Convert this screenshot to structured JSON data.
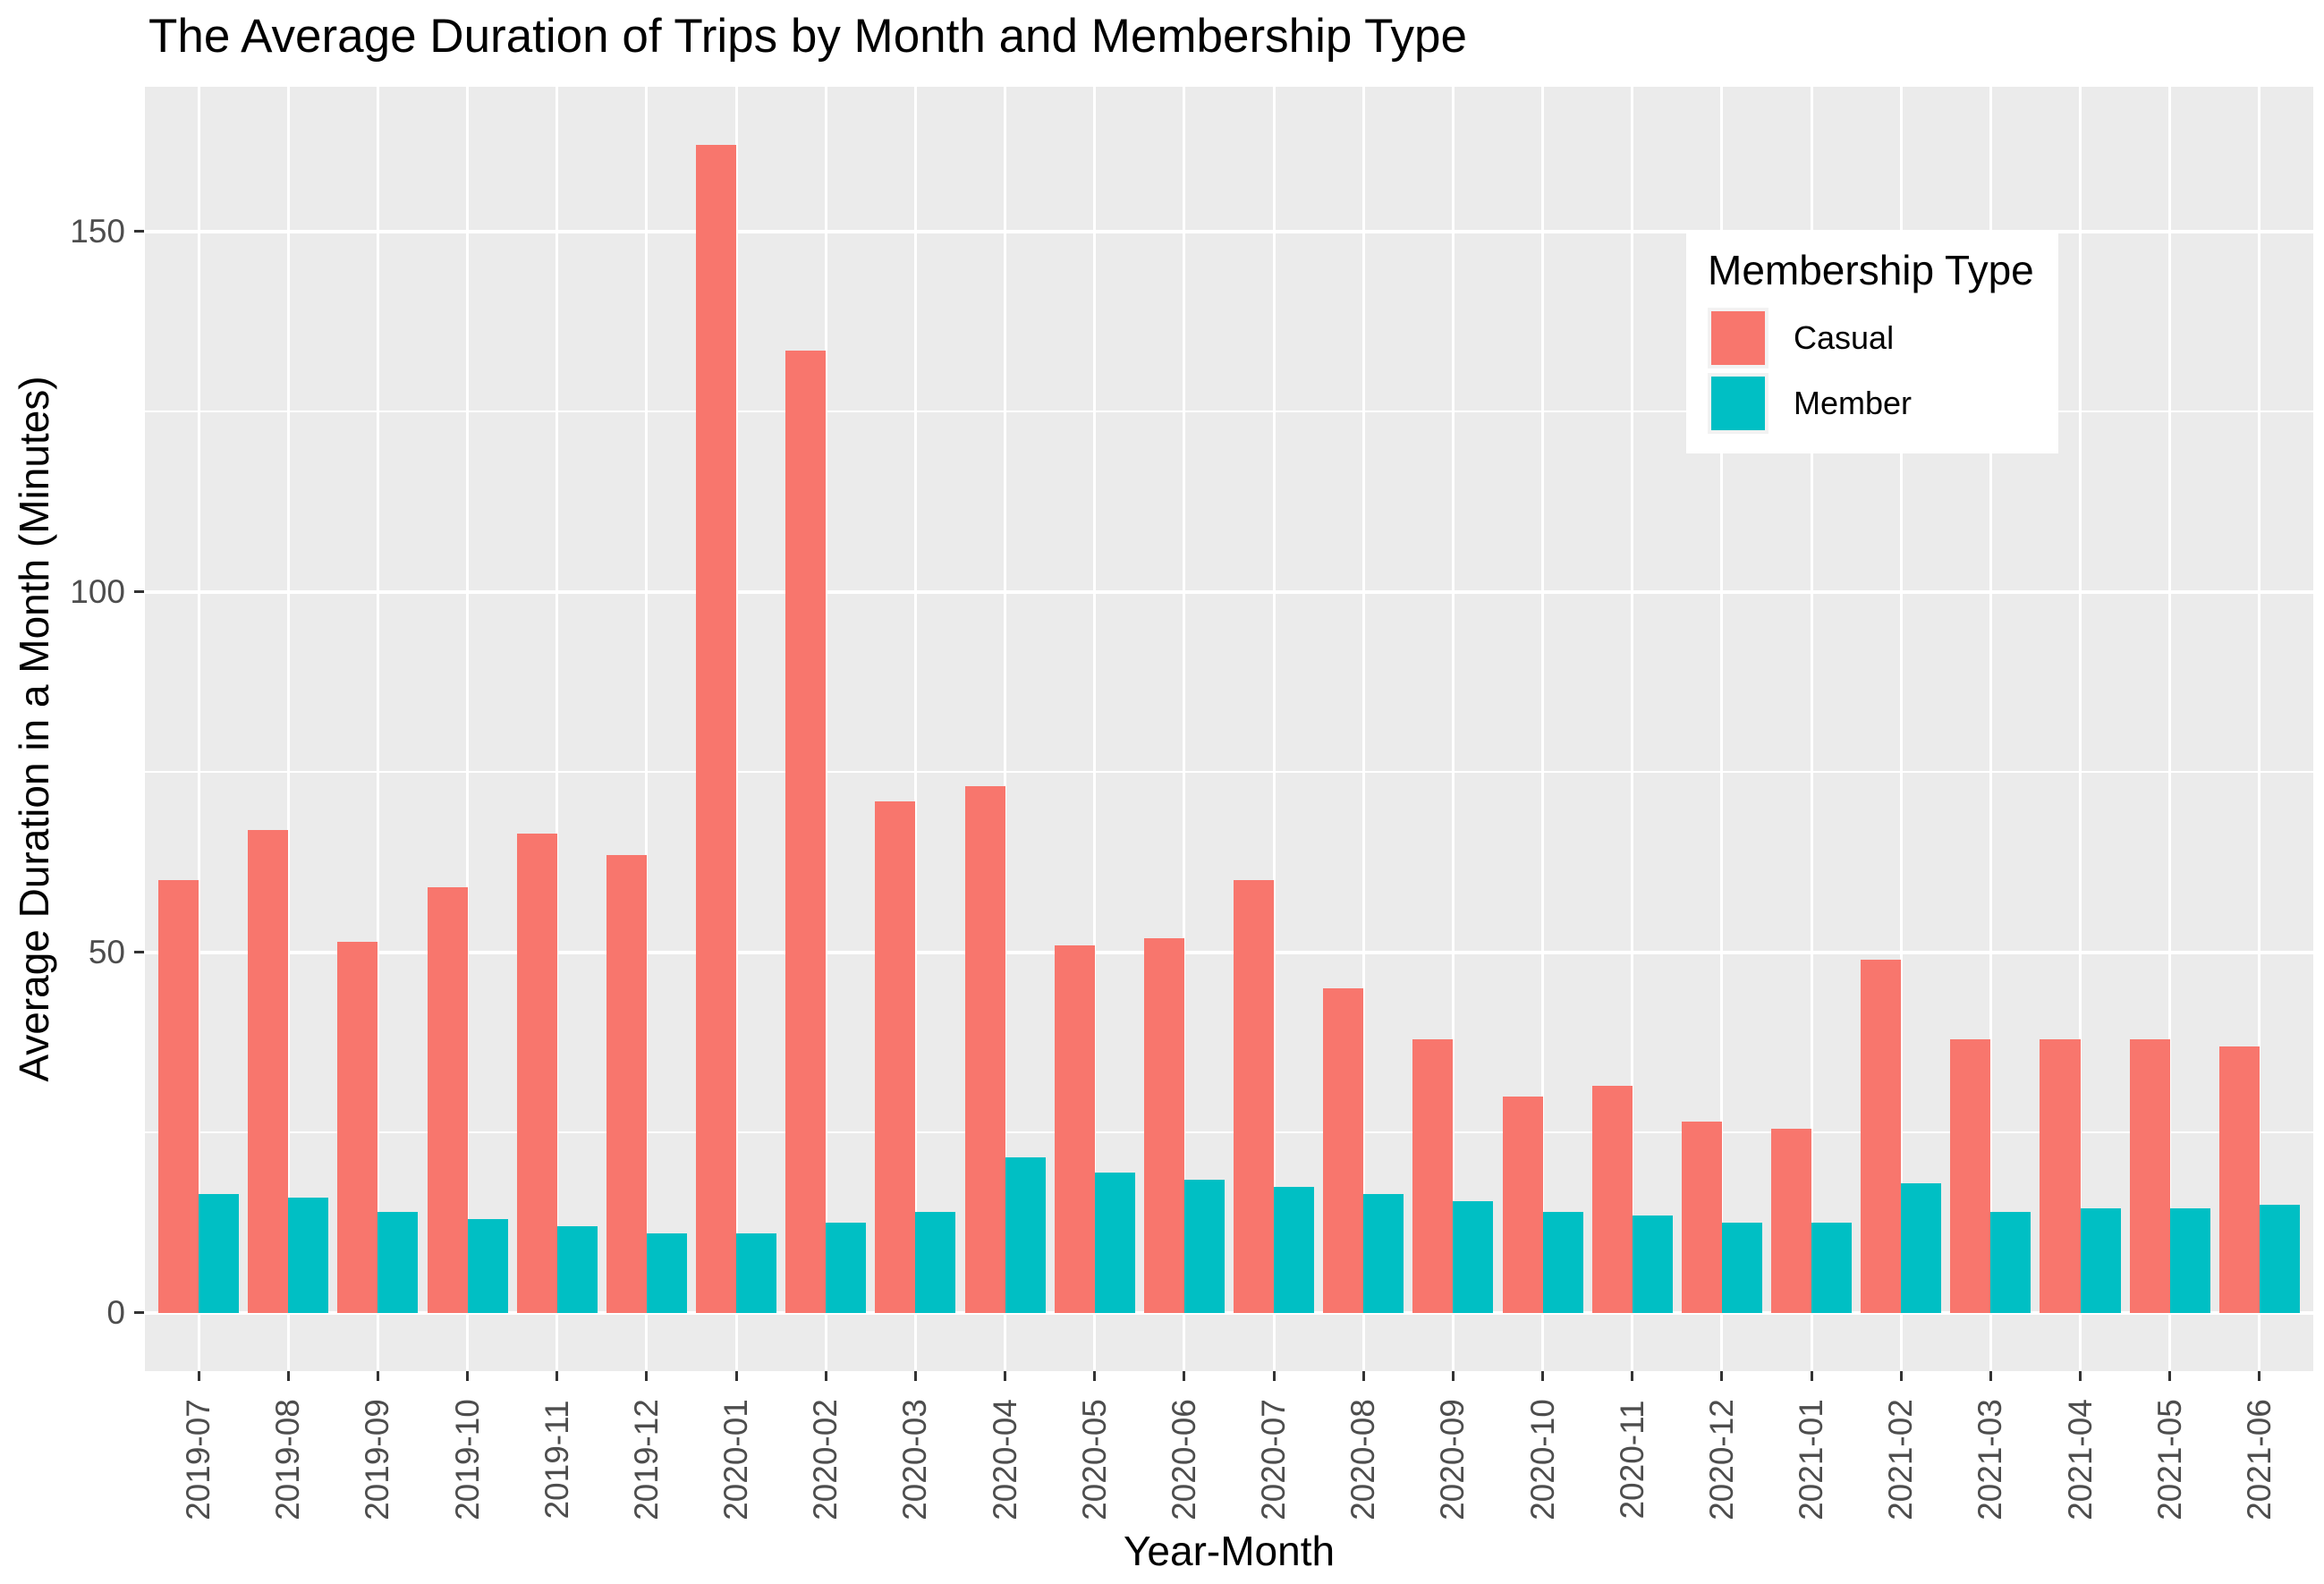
{
  "title": "The Average Duration of Trips by Month and Membership Type",
  "axes": {
    "x": {
      "label": "Year-Month"
    },
    "y": {
      "label": "Average Duration in a Month (Minutes)"
    }
  },
  "legend": {
    "title": "Membership Type",
    "entries": [
      {
        "label": "Casual",
        "color": "#F8766D"
      },
      {
        "label": "Member",
        "color": "#00BFC4"
      }
    ]
  },
  "colors": {
    "figure_bg": "#FFFFFF",
    "panel_bg": "#EBEBEB",
    "grid": "#FFFFFF",
    "tick_text": "#4D4D4D",
    "tick_mark": "#333333",
    "title_text": "#000000",
    "casual": "#F8766D",
    "member": "#00BFC4"
  },
  "chart_data": {
    "type": "bar",
    "bar_grouping": "dodge",
    "title": "The Average Duration of Trips by Month and Membership Type",
    "xlabel": "Year-Month",
    "ylabel": "Average Duration in a Month (Minutes)",
    "categories": [
      "2019-07",
      "2019-08",
      "2019-09",
      "2019-10",
      "2019-11",
      "2019-12",
      "2020-01",
      "2020-02",
      "2020-03",
      "2020-04",
      "2020-05",
      "2020-06",
      "2020-07",
      "2020-08",
      "2020-09",
      "2020-10",
      "2020-11",
      "2020-12",
      "2021-01",
      "2021-02",
      "2021-03",
      "2021-04",
      "2021-05",
      "2021-06"
    ],
    "series": [
      {
        "name": "Casual",
        "color": "#F8766D",
        "values": [
          60,
          67,
          51.5,
          59,
          66.5,
          63.5,
          162,
          133.5,
          71,
          73,
          51,
          52,
          60,
          45,
          38,
          30,
          31.5,
          26.5,
          25.5,
          49,
          38,
          38,
          38,
          37
        ]
      },
      {
        "name": "Member",
        "color": "#00BFC4",
        "values": [
          16.5,
          16,
          14,
          13,
          12,
          11,
          11,
          12.5,
          14,
          21.5,
          19.5,
          18.5,
          17.5,
          16.5,
          15.5,
          14,
          13.5,
          12.5,
          12.5,
          18,
          14,
          14.5,
          14.5,
          15
        ]
      }
    ],
    "y_ticks": [
      0,
      50,
      100,
      150
    ],
    "y_tick_labels": [
      "0",
      "50",
      "100",
      "150"
    ],
    "y_minor_ticks": [
      25,
      75,
      125
    ],
    "ylim": [
      -8.1,
      170.1
    ],
    "grid": true,
    "legend_position": "top-right-inside"
  }
}
